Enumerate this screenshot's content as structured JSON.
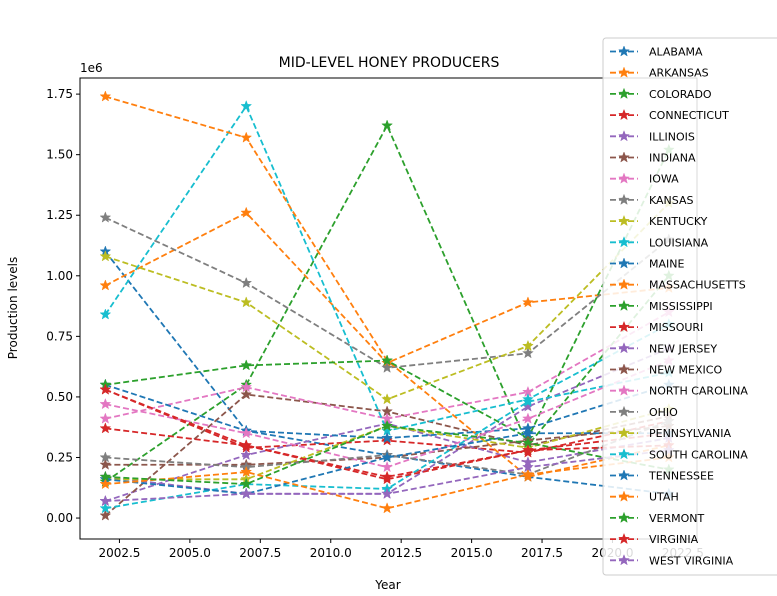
{
  "chart_data": {
    "type": "line",
    "title": "MID-LEVEL HONEY PRODUCERS",
    "xlabel": "Year",
    "ylabel": "Production levels",
    "y_offset_label": "1e6",
    "xlim": [
      2001.1,
      2023.0
    ],
    "ylim": [
      -0.0865,
      1.8165
    ],
    "y_scale": 1000000,
    "x_ticks": [
      2002.5,
      2005.0,
      2007.5,
      2010.0,
      2012.5,
      2015.0,
      2017.5,
      2020.0,
      2022.5
    ],
    "x_tick_labels": [
      "2002.5",
      "2005.0",
      "2007.5",
      "2010.0",
      "2012.5",
      "2015.0",
      "2017.5",
      "2020.0",
      "2022.5"
    ],
    "y_ticks": [
      0.0,
      0.25,
      0.5,
      0.75,
      1.0,
      1.25,
      1.5,
      1.75
    ],
    "y_tick_labels": [
      "0.00",
      "0.25",
      "0.50",
      "0.75",
      "1.00",
      "1.25",
      "1.50",
      "1.75"
    ],
    "x": [
      2002,
      2007,
      2012,
      2017,
      2022
    ],
    "legend_position": "upper-right (outside plot)",
    "series": [
      {
        "name": "ALABAMA",
        "color": "#1f77b4",
        "values": [
          1.1,
          0.36,
          0.26,
          0.17,
          0.1
        ]
      },
      {
        "name": "ARKANSAS",
        "color": "#ff7f0e",
        "values": [
          0.96,
          1.26,
          0.64,
          0.89,
          0.95
        ]
      },
      {
        "name": "COLORADO",
        "color": "#2ca02c",
        "values": [
          0.15,
          0.55,
          1.62,
          0.3,
          1.0
        ]
      },
      {
        "name": "CONNECTICUT",
        "color": "#d62728",
        "values": [
          0.53,
          0.29,
          0.32,
          0.27,
          0.4
        ]
      },
      {
        "name": "ILLINOIS",
        "color": "#9467bd",
        "values": [
          0.07,
          0.26,
          0.39,
          0.23,
          0.33
        ]
      },
      {
        "name": "INDIANA",
        "color": "#8c564b",
        "values": [
          0.01,
          0.51,
          0.44,
          0.3,
          0.42
        ]
      },
      {
        "name": "IOWA",
        "color": "#e377c2",
        "values": [
          0.41,
          0.54,
          0.41,
          0.52,
          0.85
        ]
      },
      {
        "name": "KANSAS",
        "color": "#7f7f7f",
        "values": [
          1.24,
          0.97,
          0.62,
          0.68,
          1.15
        ]
      },
      {
        "name": "KENTUCKY",
        "color": "#bcbd22",
        "values": [
          1.08,
          0.89,
          0.49,
          0.71,
          1.3
        ]
      },
      {
        "name": "LOUISIANA",
        "color": "#17becf",
        "values": [
          0.84,
          1.7,
          0.36,
          0.49,
          0.8
        ]
      },
      {
        "name": "MAINE",
        "color": "#1f77b4",
        "values": [
          0.55,
          0.36,
          0.33,
          0.37,
          0.55
        ]
      },
      {
        "name": "MASSACHUSETTS",
        "color": "#ff7f0e",
        "values": [
          1.74,
          1.57,
          0.65,
          0.17,
          0.3
        ]
      },
      {
        "name": "MISSISSIPPI",
        "color": "#2ca02c",
        "values": [
          0.55,
          0.63,
          0.65,
          0.33,
          1.52
        ]
      },
      {
        "name": "MISSOURI",
        "color": "#d62728",
        "values": [
          0.37,
          0.3,
          0.17,
          0.28,
          0.35
        ]
      },
      {
        "name": "NEW JERSEY",
        "color": "#9467bd",
        "values": [
          0.17,
          0.1,
          0.1,
          0.46,
          0.7
        ]
      },
      {
        "name": "NEW MEXICO",
        "color": "#8c564b",
        "values": [
          0.22,
          0.22,
          0.25,
          0.32,
          0.38
        ]
      },
      {
        "name": "NORTH CAROLINA",
        "color": "#e377c2",
        "values": [
          0.47,
          0.35,
          0.21,
          0.41,
          0.65
        ]
      },
      {
        "name": "OHIO",
        "color": "#7f7f7f",
        "values": [
          0.25,
          0.21,
          0.26,
          0.18,
          0.4
        ]
      },
      {
        "name": "PENNSYLVANIA",
        "color": "#bcbd22",
        "values": [
          0.16,
          0.16,
          0.38,
          0.29,
          0.45
        ]
      },
      {
        "name": "SOUTH CAROLINA",
        "color": "#17becf",
        "values": [
          0.04,
          0.14,
          0.12,
          0.48,
          0.6
        ]
      },
      {
        "name": "TENNESSEE",
        "color": "#1f77b4",
        "values": [
          0.16,
          0.1,
          0.25,
          0.35,
          0.35
        ]
      },
      {
        "name": "UTAH",
        "color": "#ff7f0e",
        "values": [
          0.14,
          0.19,
          0.04,
          0.18,
          0.25
        ]
      },
      {
        "name": "VERMONT",
        "color": "#2ca02c",
        "values": [
          0.17,
          0.14,
          0.38,
          0.31,
          0.2
        ]
      },
      {
        "name": "VIRGINIA",
        "color": "#d62728",
        "values": [
          0.53,
          0.3,
          0.16,
          0.28,
          0.3
        ]
      },
      {
        "name": "WEST VIRGINIA",
        "color": "#9467bd",
        "values": [
          0.07,
          0.1,
          0.1,
          0.21,
          0.28
        ]
      }
    ]
  }
}
